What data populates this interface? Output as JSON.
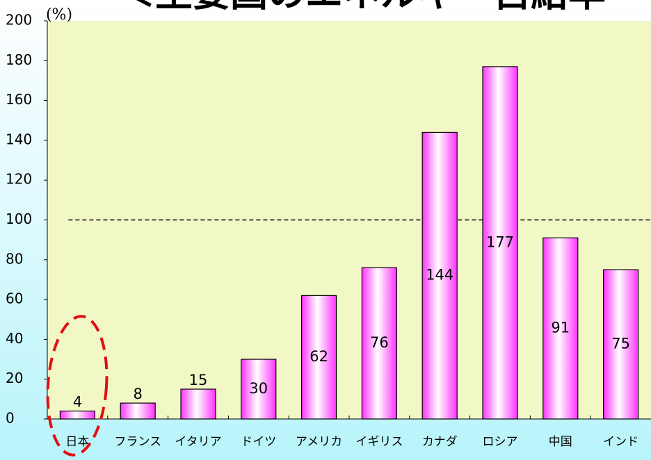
{
  "chart_data": {
    "type": "bar",
    "title": "＜主要国のエネルギー自給率",
    "y_label": "(%)",
    "categories": [
      "日本",
      "フランス",
      "イタリア",
      "ドイツ",
      "アメリカ",
      "イギリス",
      "カナダ",
      "ロシア",
      "中国",
      "インド"
    ],
    "values": [
      4,
      8,
      15,
      30,
      62,
      76,
      144,
      177,
      91,
      75
    ],
    "color": "#ff33ff",
    "ylim": [
      0,
      200
    ],
    "yticks": [
      0,
      20,
      40,
      60,
      80,
      100,
      120,
      140,
      160,
      180,
      200
    ],
    "grid": false,
    "reference_line": 100
  }
}
